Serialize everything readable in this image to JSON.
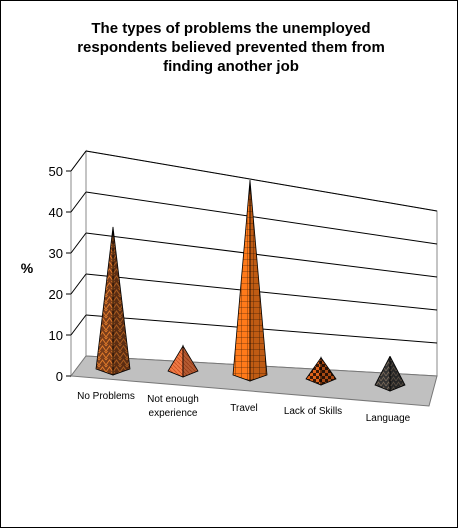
{
  "chart_data": {
    "type": "bar",
    "bar_shape": "pyramid",
    "title": "The types of problems the unemployed\nrespondents believed prevented them from\nfinding another job",
    "xlabel": "",
    "ylabel": "%",
    "ylim": [
      0,
      50
    ],
    "yticks": [
      "0",
      "10",
      "20",
      "30",
      "40",
      "50"
    ],
    "grid": true,
    "legend": "none",
    "categories": [
      {
        "lines": [
          "No Problems"
        ]
      },
      {
        "lines": [
          "Not enough",
          "experience"
        ]
      },
      {
        "lines": [
          "Travel"
        ]
      },
      {
        "lines": [
          "Lack of Skills"
        ]
      },
      {
        "lines": [
          "Language"
        ]
      }
    ],
    "values": [
      35,
      4,
      49,
      3,
      5
    ],
    "colors": {
      "pyramid_1": "#7a3d1a",
      "pyramid_2": "#f07a45",
      "pyramid_3": "#ff7a1a",
      "pyramid_4": "#e0621a",
      "pyramid_5": "#333333",
      "floor": "#c0c0c0"
    }
  }
}
